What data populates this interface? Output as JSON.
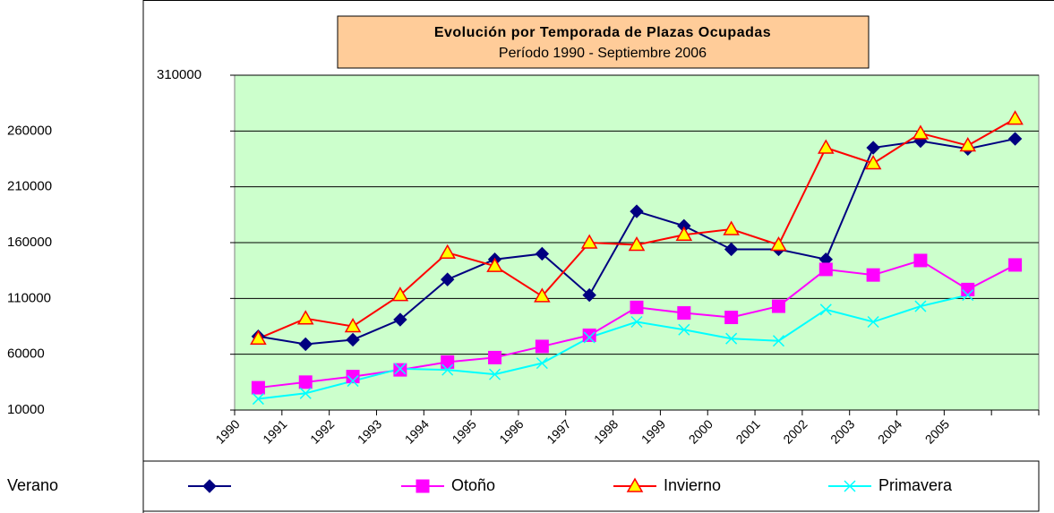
{
  "chart_data": {
    "type": "line",
    "title": "Evolución por Temporada de Plazas Ocupadas",
    "subtitle": "Período 1990 - Septiembre 2006",
    "categories": [
      "1990",
      "1991",
      "1992",
      "1993",
      "1994",
      "1995",
      "1996",
      "1997",
      "1998",
      "1999",
      "2000",
      "2001",
      "2002",
      "2003",
      "2004",
      "2005",
      null
    ],
    "series": [
      {
        "name": "Verano",
        "color": "#000080",
        "marker": "diamond",
        "values": [
          76000,
          69000,
          73000,
          91000,
          127000,
          145000,
          150000,
          113000,
          188000,
          175000,
          154000,
          154000,
          145000,
          245000,
          251000,
          244000,
          253000
        ]
      },
      {
        "name": "Otoño",
        "color": "#ff00ff",
        "marker": "square",
        "values": [
          30000,
          35000,
          40000,
          46000,
          53000,
          57000,
          67000,
          77000,
          102000,
          97000,
          93000,
          103000,
          136000,
          131000,
          144000,
          118000,
          140000
        ]
      },
      {
        "name": "Invierno",
        "color": "#ff0000",
        "marker": "triangle",
        "values": [
          74000,
          92000,
          85000,
          113000,
          151000,
          139000,
          112000,
          160000,
          158000,
          167000,
          172000,
          158000,
          245000,
          231000,
          258000,
          247000,
          271000
        ]
      },
      {
        "name": "Primavera",
        "color": "#00ffff",
        "marker": "x",
        "values": [
          20000,
          25000,
          36000,
          47000,
          46000,
          42000,
          52000,
          75000,
          89000,
          82000,
          74000,
          72000,
          100000,
          89000,
          103000,
          113000,
          null
        ]
      }
    ],
    "ylim": [
      10000,
      310000
    ],
    "yticks": [
      10000,
      60000,
      110000,
      160000,
      210000,
      260000,
      310000
    ],
    "grid": true
  }
}
